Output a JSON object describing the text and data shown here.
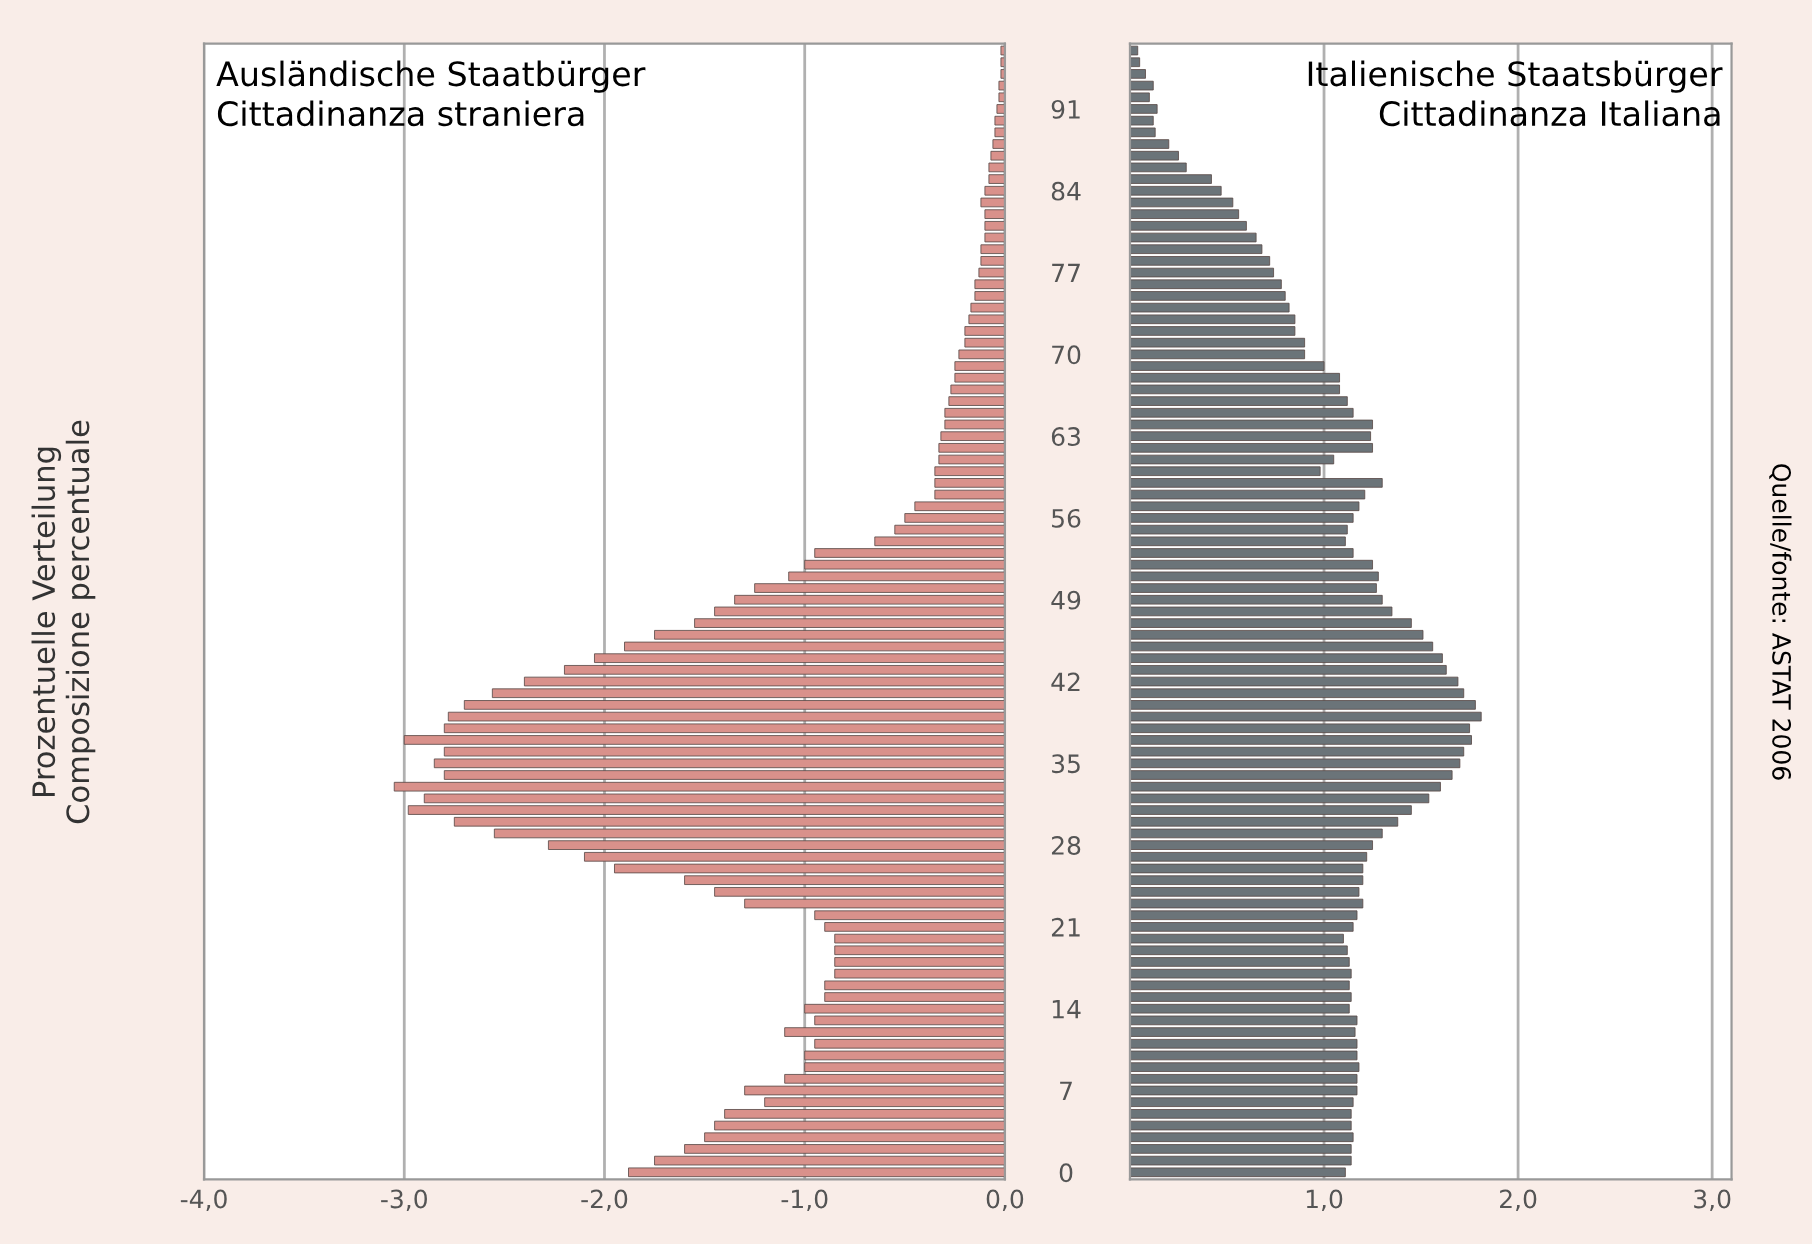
{
  "chart_data": [
    {
      "type": "bar",
      "orientation": "horizontal",
      "title": "Ausländische Staatbürger\nCittadinanza straniera",
      "ylabel": "Prozentuelle Verteilung\nComposizione percentuale",
      "categories": [
        null,
        null,
        null,
        null,
        null,
        "91",
        null,
        null,
        null,
        null,
        null,
        null,
        "84",
        null,
        null,
        null,
        null,
        null,
        null,
        "77",
        null,
        null,
        null,
        null,
        null,
        null,
        "70",
        null,
        null,
        null,
        null,
        null,
        null,
        "63",
        null,
        null,
        null,
        null,
        null,
        null,
        "56",
        null,
        null,
        null,
        null,
        null,
        null,
        "49",
        null,
        null,
        null,
        null,
        null,
        null,
        "42",
        null,
        null,
        null,
        null,
        null,
        null,
        "35",
        null,
        null,
        null,
        null,
        null,
        null,
        "28",
        null,
        null,
        null,
        null,
        null,
        null,
        "21",
        null,
        null,
        null,
        null,
        null,
        null,
        "14",
        null,
        null,
        null,
        null,
        null,
        null,
        "7",
        null,
        null,
        null,
        null,
        null,
        null,
        "0"
      ],
      "values": [
        -0.02,
        -0.02,
        -0.02,
        -0.03,
        -0.03,
        -0.04,
        -0.05,
        -0.05,
        -0.06,
        -0.07,
        -0.08,
        -0.08,
        -0.1,
        -0.12,
        -0.1,
        -0.1,
        -0.1,
        -0.12,
        -0.12,
        -0.13,
        -0.15,
        -0.15,
        -0.17,
        -0.18,
        -0.2,
        -0.2,
        -0.23,
        -0.25,
        -0.25,
        -0.27,
        -0.28,
        -0.3,
        -0.3,
        -0.32,
        -0.33,
        -0.33,
        -0.35,
        -0.35,
        -0.35,
        -0.45,
        -0.5,
        -0.55,
        -0.65,
        -0.95,
        -1.0,
        -1.08,
        -1.25,
        -1.35,
        -1.45,
        -1.55,
        -1.75,
        -1.9,
        -2.05,
        -2.2,
        -2.4,
        -2.56,
        -2.7,
        -2.78,
        -2.8,
        -3.0,
        -2.8,
        -2.85,
        -2.8,
        -3.05,
        -2.9,
        -2.98,
        -2.75,
        -2.55,
        -2.28,
        -2.1,
        -1.95,
        -1.6,
        -1.45,
        -1.3,
        -0.95,
        -0.9,
        -0.85,
        -0.85,
        -0.85,
        -0.85,
        -0.9,
        -0.9,
        -1.0,
        -0.95,
        -1.1,
        -0.95,
        -1.0,
        -1.0,
        -1.1,
        -1.3,
        -1.2,
        -1.4,
        -1.45,
        -1.5,
        -1.6,
        -1.75,
        -1.88
      ],
      "color": "#d9918b",
      "xlim": [
        -4,
        0
      ],
      "xticks": [
        {
          "value": -4,
          "label": "-4,0"
        },
        {
          "value": -3,
          "label": "-3,0"
        },
        {
          "value": -2,
          "label": "-2,0"
        },
        {
          "value": -1,
          "label": "-1,0"
        },
        {
          "value": 0,
          "label": "0,0"
        }
      ],
      "grid": "x"
    },
    {
      "type": "bar",
      "orientation": "horizontal",
      "title": "Italienische Staatsbürger\nCittadinanza Italiana",
      "annotations": [
        "Quelle/fonte: ASTAT 2006"
      ],
      "categories": [
        null,
        null,
        null,
        null,
        null,
        "91",
        null,
        null,
        null,
        null,
        null,
        null,
        "84",
        null,
        null,
        null,
        null,
        null,
        null,
        "77",
        null,
        null,
        null,
        null,
        null,
        null,
        "70",
        null,
        null,
        null,
        null,
        null,
        null,
        "63",
        null,
        null,
        null,
        null,
        null,
        null,
        "56",
        null,
        null,
        null,
        null,
        null,
        null,
        "49",
        null,
        null,
        null,
        null,
        null,
        null,
        "42",
        null,
        null,
        null,
        null,
        null,
        null,
        "35",
        null,
        null,
        null,
        null,
        null,
        null,
        "28",
        null,
        null,
        null,
        null,
        null,
        null,
        "21",
        null,
        null,
        null,
        null,
        null,
        null,
        "14",
        null,
        null,
        null,
        null,
        null,
        null,
        "7",
        null,
        null,
        null,
        null,
        null,
        null,
        "0"
      ],
      "values": [
        0.04,
        0.05,
        0.08,
        0.12,
        0.1,
        0.14,
        0.12,
        0.13,
        0.2,
        0.25,
        0.29,
        0.42,
        0.47,
        0.53,
        0.56,
        0.6,
        0.65,
        0.68,
        0.72,
        0.74,
        0.78,
        0.8,
        0.82,
        0.85,
        0.85,
        0.9,
        0.9,
        1.0,
        1.08,
        1.08,
        1.12,
        1.15,
        1.25,
        1.24,
        1.25,
        1.05,
        0.98,
        1.3,
        1.21,
        1.18,
        1.15,
        1.12,
        1.11,
        1.15,
        1.25,
        1.28,
        1.27,
        1.3,
        1.35,
        1.45,
        1.51,
        1.56,
        1.61,
        1.63,
        1.69,
        1.72,
        1.78,
        1.81,
        1.75,
        1.76,
        1.72,
        1.7,
        1.66,
        1.6,
        1.54,
        1.45,
        1.38,
        1.3,
        1.25,
        1.22,
        1.2,
        1.2,
        1.18,
        1.2,
        1.17,
        1.15,
        1.1,
        1.12,
        1.13,
        1.14,
        1.13,
        1.14,
        1.13,
        1.17,
        1.16,
        1.17,
        1.17,
        1.18,
        1.17,
        1.17,
        1.15,
        1.14,
        1.14,
        1.15,
        1.14,
        1.14,
        1.11
      ],
      "color": "#6b7479",
      "xlim": [
        0,
        3.1
      ],
      "xticks": [
        {
          "value": 1,
          "label": "1,0"
        },
        {
          "value": 2,
          "label": "2,0"
        },
        {
          "value": 3,
          "label": "3,0"
        }
      ],
      "tick_labels": "x",
      "grid": "x"
    }
  ]
}
